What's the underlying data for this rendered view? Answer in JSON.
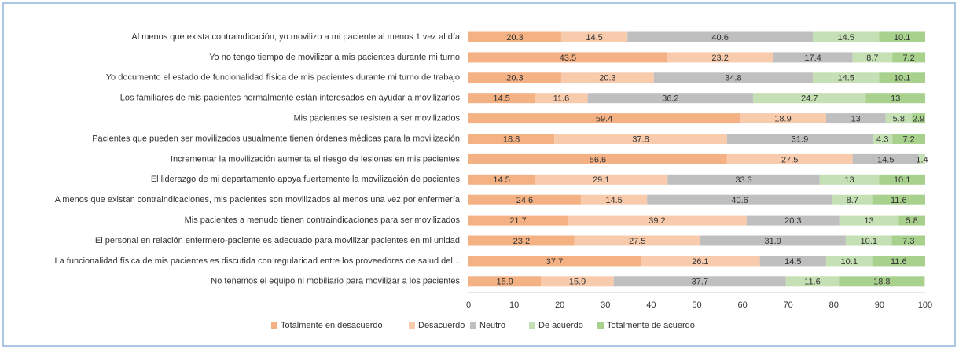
{
  "chart_data": {
    "type": "stacked_barh",
    "categories": [
      "Al menos que exista contraindicación, yo movilizo a mi paciente al menos 1 vez al día",
      "Yo no tengo tiempo de movilizar a mis pacientes durante mi turno",
      "Yo documento el estado de funcionalidad física de mis pacientes durante mi turno de trabajo",
      "Los familiares de mis pacientes normalmente están interesados en ayudar a movilizarlos",
      "Mis pacientes se resisten a ser movilizados",
      "Pacientes que pueden ser movilizados usualmente tienen órdenes médicas para la movilización",
      "Incrementar la movilización aumenta el riesgo de lesiones en mis pacientes",
      "El liderazgo de mi departamento apoya fuertemente la movilización de pacientes",
      "A menos que existan contraindicaciones, mis pacientes son movilizados al menos una vez por enfermería",
      "Mis pacientes a menudo tienen contraindicaciones para ser movilizados",
      "El personal en relación enfermero-paciente es adecuado para movilizar pacientes en mi unidad",
      "La funcionalidad física de mis pacientes es discutida con regularidad entre los proveedores de salud del...",
      "No tenemos el equipo ni mobiliario para movilizar a los pacientes"
    ],
    "series": [
      {
        "name": "Totalmente en desacuerdo",
        "color": "#f4b183",
        "values": [
          20.3,
          43.5,
          20.3,
          14.5,
          59.4,
          18.8,
          56.6,
          14.5,
          24.6,
          21.7,
          23.2,
          37.7,
          15.9
        ]
      },
      {
        "name": "Desacuerdo",
        "color": "#f8cbad",
        "values": [
          14.5,
          23.2,
          20.3,
          11.6,
          18.9,
          37.8,
          27.5,
          29.1,
          14.5,
          39.2,
          27.5,
          26.1,
          15.9
        ]
      },
      {
        "name": "Neutro",
        "color": "#bfbfbf",
        "values": [
          40.6,
          17.4,
          34.8,
          36.2,
          13,
          31.9,
          14.5,
          33.3,
          40.6,
          20.3,
          31.9,
          14.5,
          37.7
        ]
      },
      {
        "name": "De acuerdo",
        "color": "#c5e0b4",
        "values": [
          14.5,
          8.7,
          14.5,
          24.7,
          5.8,
          4.3,
          1.4,
          13,
          8.7,
          13,
          10.1,
          10.1,
          11.6
        ]
      },
      {
        "name": "Totalmente de acuerdo",
        "color": "#a9d18e",
        "values": [
          10.1,
          7.2,
          10.1,
          13,
          2.9,
          7.2,
          null,
          10.1,
          11.6,
          5.8,
          7.3,
          11.6,
          18.8
        ]
      }
    ],
    "xlim": [
      0,
      100
    ],
    "xticks": [
      0,
      10,
      20,
      30,
      40,
      50,
      60,
      70,
      80,
      90,
      100
    ],
    "grid": false,
    "legend": "bottom"
  }
}
